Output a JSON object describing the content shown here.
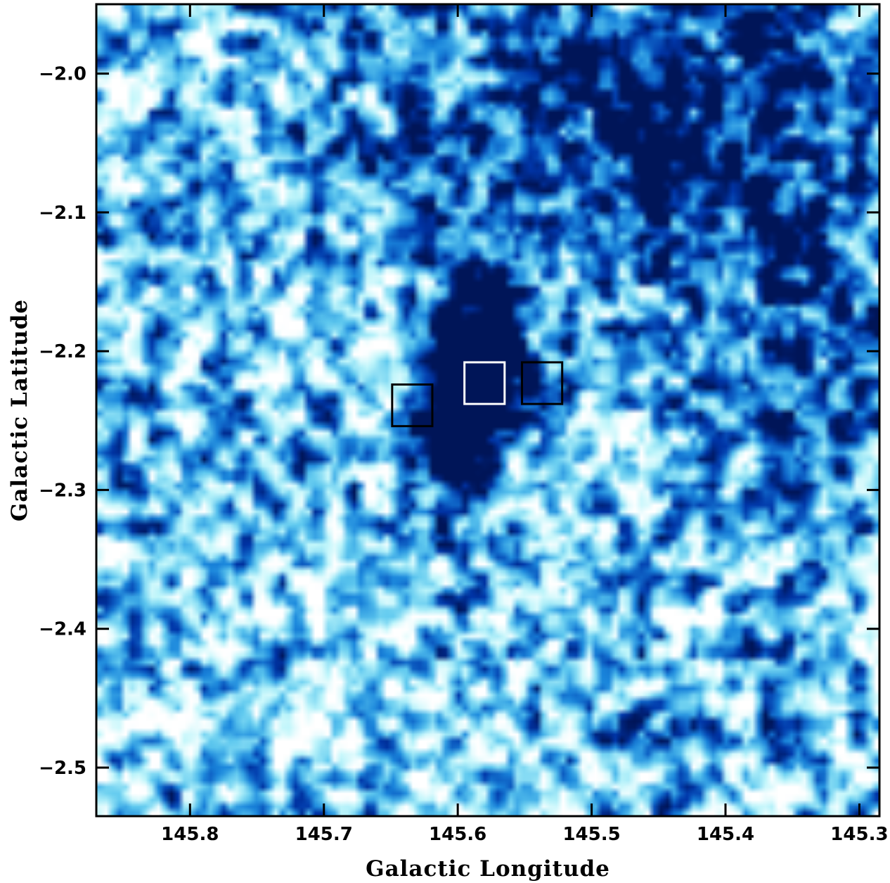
{
  "chart_data": {
    "type": "heatmap",
    "title": "",
    "xlabel": "Galactic Longitude",
    "ylabel": "Galactic Latitude",
    "x_reversed": true,
    "xlim": [
      145.87,
      145.285
    ],
    "ylim": [
      -2.535,
      -1.95
    ],
    "x_ticks": [
      {
        "value": 145.8,
        "label": "145.8"
      },
      {
        "value": 145.7,
        "label": "145.7"
      },
      {
        "value": 145.6,
        "label": "145.6"
      },
      {
        "value": 145.5,
        "label": "145.5"
      },
      {
        "value": 145.4,
        "label": "145.4"
      },
      {
        "value": 145.3,
        "label": "145.3"
      }
    ],
    "y_ticks": [
      {
        "value": -2.0,
        "label": "−2.0"
      },
      {
        "value": -2.1,
        "label": "−2.1"
      },
      {
        "value": -2.2,
        "label": "−2.2"
      },
      {
        "value": -2.3,
        "label": "−2.3"
      },
      {
        "value": -2.4,
        "label": "−2.4"
      },
      {
        "value": -2.5,
        "label": "−2.5"
      }
    ],
    "colormap": [
      "#ffffff",
      "#bff6fb",
      "#5fc9ef",
      "#1a86dc",
      "#0035a8",
      "#001558"
    ],
    "grid": false,
    "legend": "none",
    "dense_regions": [
      {
        "l": 145.582,
        "b": -2.205,
        "sl": 0.025,
        "sb": 0.042,
        "amp": 1.3
      },
      {
        "l": 145.605,
        "b": -2.255,
        "sl": 0.02,
        "sb": 0.03,
        "amp": 0.8
      },
      {
        "l": 145.46,
        "b": -2.02,
        "sl": 0.14,
        "sb": 0.075,
        "amp": 0.5
      },
      {
        "l": 145.35,
        "b": -2.2,
        "sl": 0.06,
        "sb": 0.1,
        "amp": 0.3
      }
    ],
    "boxes": [
      {
        "name": "box-left",
        "l_min": 145.619,
        "l_max": 145.649,
        "b_min": -2.254,
        "b_max": -2.224,
        "color": "#000000"
      },
      {
        "name": "box-center",
        "l_min": 145.565,
        "l_max": 145.595,
        "b_min": -2.238,
        "b_max": -2.208,
        "color": "#ffffff"
      },
      {
        "name": "box-right",
        "l_min": 145.522,
        "l_max": 145.552,
        "b_min": -2.238,
        "b_max": -2.208,
        "color": "#000000"
      }
    ]
  }
}
